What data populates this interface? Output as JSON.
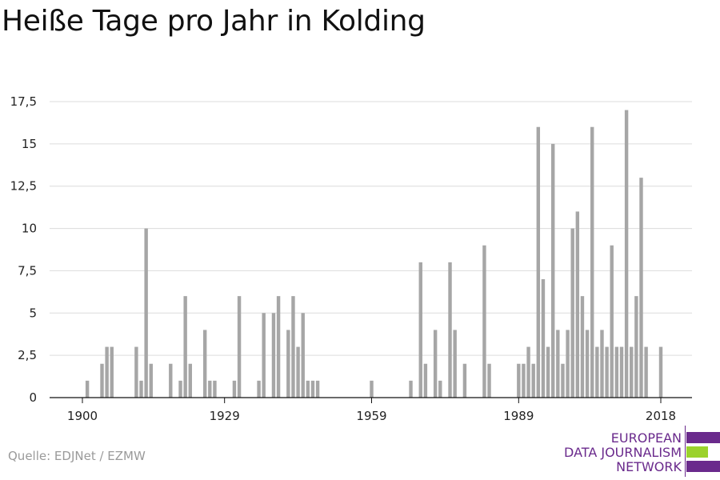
{
  "title": "Heiße Tage pro Jahr in Kolding",
  "source": "Quelle: EDJNet / EZMW",
  "logo": {
    "lines": [
      "EUROPEAN",
      "DATA JOURNALISM",
      "NETWORK"
    ],
    "colors": [
      "#6a2a8c",
      "#9bd22c",
      "#6a2a8c"
    ]
  },
  "chart_data": {
    "type": "bar",
    "x": [
      1901,
      1904,
      1905,
      1906,
      1911,
      1912,
      1913,
      1914,
      1918,
      1920,
      1921,
      1922,
      1925,
      1926,
      1927,
      1931,
      1932,
      1936,
      1937,
      1939,
      1940,
      1942,
      1943,
      1944,
      1945,
      1946,
      1947,
      1948,
      1959,
      1967,
      1969,
      1970,
      1972,
      1973,
      1975,
      1976,
      1978,
      1982,
      1983,
      1989,
      1990,
      1991,
      1992,
      1993,
      1994,
      1995,
      1996,
      1997,
      1998,
      1999,
      2000,
      2001,
      2002,
      2003,
      2004,
      2005,
      2006,
      2007,
      2008,
      2009,
      2010,
      2011,
      2012,
      2013,
      2014,
      2015,
      2018
    ],
    "values": [
      1,
      2,
      3,
      3,
      3,
      1,
      10,
      2,
      2,
      1,
      6,
      2,
      4,
      1,
      1,
      1,
      6,
      1,
      5,
      5,
      6,
      4,
      6,
      3,
      5,
      1,
      1,
      1,
      1,
      1,
      8,
      2,
      4,
      1,
      8,
      4,
      2,
      9,
      2,
      2,
      2,
      3,
      2,
      16,
      7,
      3,
      15,
      4,
      2,
      4,
      10,
      11,
      6,
      4,
      16,
      3,
      4,
      3,
      9,
      3,
      3,
      17,
      3,
      6,
      13,
      3,
      3
    ],
    "xlim": [
      1900,
      2018
    ],
    "xticks": [
      1900,
      1929,
      1959,
      1989,
      2018
    ],
    "xticklabels": [
      "1900",
      "1929",
      "1959",
      "1989",
      "2018"
    ],
    "ylim": [
      0,
      17.5
    ],
    "yticks": [
      0,
      2.5,
      5,
      7.5,
      10,
      12.5,
      15,
      17.5
    ],
    "yticklabels": [
      "0",
      "2,5",
      "5",
      "7,5",
      "10",
      "12,5",
      "15",
      "17,5"
    ],
    "xlabel": "",
    "ylabel": "",
    "grid": "horizontal",
    "colors": {
      "bar": "#a6a6a6",
      "grid": "#dcdcdc",
      "axis": "#111111",
      "label": "#222222"
    }
  }
}
